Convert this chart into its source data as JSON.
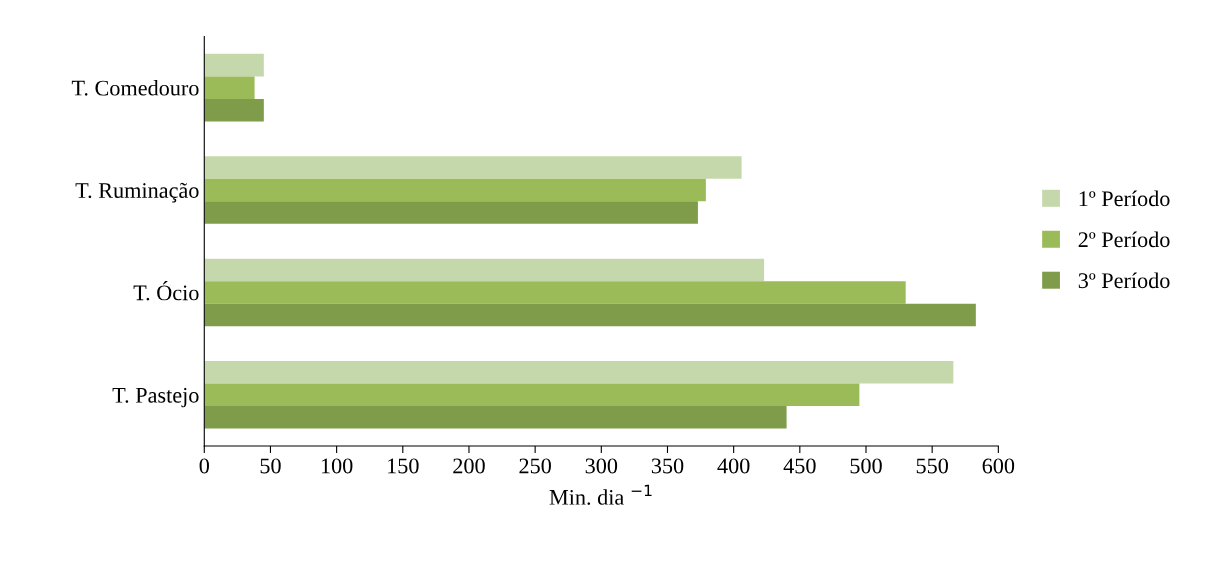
{
  "chart_data": {
    "type": "bar",
    "orientation": "horizontal",
    "xlabel": "Min. dia $^{−1}$",
    "categories": [
      "T. Comedouro",
      "T. Ruminação",
      "T. Ócio",
      "T. Pastejo"
    ],
    "series": [
      {
        "name": "1º Período",
        "color": "#c5d8ab",
        "values": [
          45,
          406,
          423,
          566
        ]
      },
      {
        "name": "2º Período",
        "color": "#9bbb59",
        "values": [
          38,
          379,
          530,
          495
        ]
      },
      {
        "name": "3º Período",
        "color": "#7f9c4a",
        "values": [
          45,
          373,
          583,
          440
        ]
      }
    ],
    "xlim": [
      0,
      600
    ],
    "xticks": [
      0,
      50,
      100,
      150,
      200,
      250,
      300,
      350,
      400,
      450,
      500,
      550,
      600
    ],
    "grid": false,
    "legend": "right"
  }
}
